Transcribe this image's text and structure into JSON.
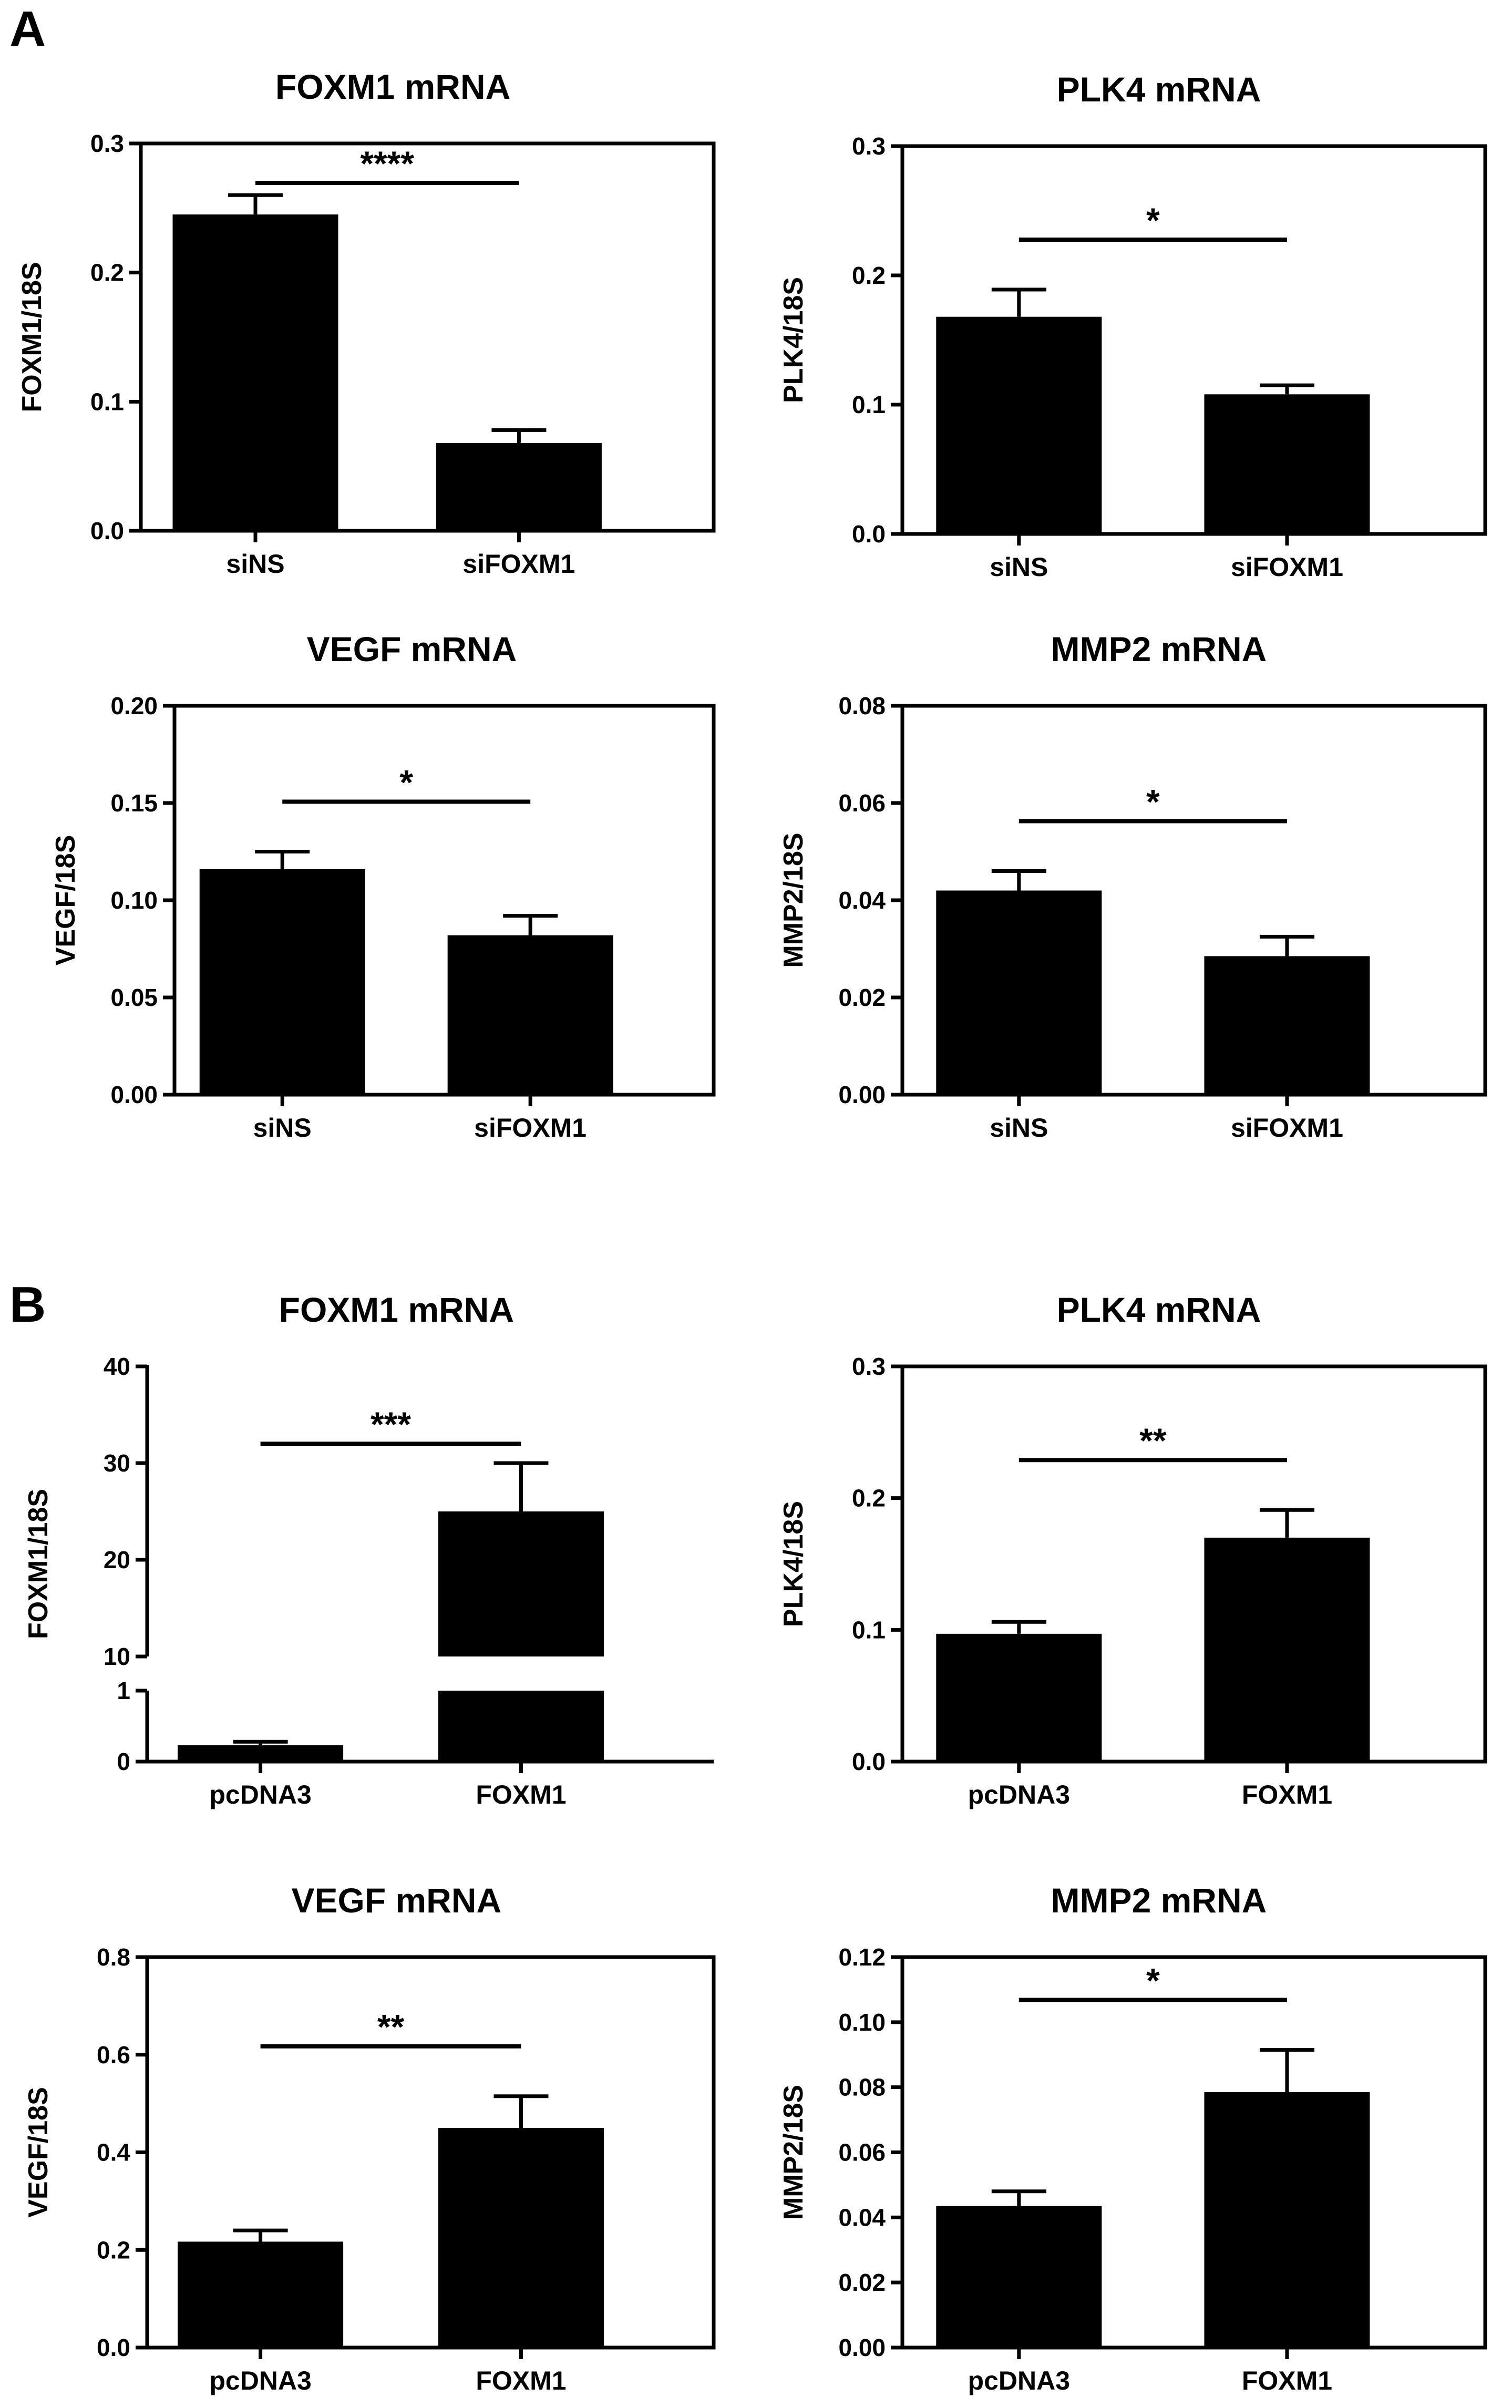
{
  "panels": [
    {
      "letter": "A"
    },
    {
      "letter": "B"
    }
  ],
  "chart_data": [
    {
      "panel": "A",
      "type": "bar",
      "title": "FOXM1 mRNA",
      "ylabel": "FOXM1/18S",
      "categories": [
        "siNS",
        "siFOXM1"
      ],
      "values": [
        0.245,
        0.068
      ],
      "errors": [
        0.015,
        0.01
      ],
      "ylim": [
        0,
        0.3
      ],
      "yticks": [
        "0.0",
        "0.1",
        "0.2",
        "0.3"
      ],
      "significance": "****"
    },
    {
      "panel": "A",
      "type": "bar",
      "title": "PLK4 mRNA",
      "ylabel": "PLK4/18S",
      "categories": [
        "siNS",
        "siFOXM1"
      ],
      "values": [
        0.168,
        0.108
      ],
      "errors": [
        0.021,
        0.007
      ],
      "ylim": [
        0,
        0.3
      ],
      "yticks": [
        "0.0",
        "0.1",
        "0.2",
        "0.3"
      ],
      "significance": "*"
    },
    {
      "panel": "A",
      "type": "bar",
      "title": "VEGF mRNA",
      "ylabel": "VEGF/18S",
      "categories": [
        "siNS",
        "siFOXM1"
      ],
      "values": [
        0.116,
        0.082
      ],
      "errors": [
        0.009,
        0.01
      ],
      "ylim": [
        0,
        0.2
      ],
      "yticks": [
        "0.00",
        "0.05",
        "0.10",
        "0.15",
        "0.20"
      ],
      "significance": "*"
    },
    {
      "panel": "A",
      "type": "bar",
      "title": "MMP2 mRNA",
      "ylabel": "MMP2/18S",
      "categories": [
        "siNS",
        "siFOXM1"
      ],
      "values": [
        0.042,
        0.0285
      ],
      "errors": [
        0.004,
        0.004
      ],
      "ylim": [
        0,
        0.08
      ],
      "yticks": [
        "0.00",
        "0.02",
        "0.04",
        "0.06",
        "0.08"
      ],
      "significance": "*"
    },
    {
      "panel": "B",
      "type": "bar",
      "title": "FOXM1 mRNA",
      "ylabel": "FOXM1/18S",
      "categories": [
        "pcDNA3",
        "FOXM1"
      ],
      "values": [
        0.23,
        25
      ],
      "errors": [
        0.05,
        5
      ],
      "broken_axis": {
        "lower": [
          0,
          1
        ],
        "upper": [
          10,
          40
        ]
      },
      "yticks_lower": [
        "0",
        "1"
      ],
      "yticks_upper": [
        "10",
        "20",
        "30",
        "40"
      ],
      "significance": "***"
    },
    {
      "panel": "B",
      "type": "bar",
      "title": "PLK4 mRNA",
      "ylabel": "PLK4/18S",
      "categories": [
        "pcDNA3",
        "FOXM1"
      ],
      "values": [
        0.097,
        0.17
      ],
      "errors": [
        0.009,
        0.021
      ],
      "ylim": [
        0,
        0.3
      ],
      "yticks": [
        "0.0",
        "0.1",
        "0.2",
        "0.3"
      ],
      "significance": "**"
    },
    {
      "panel": "B",
      "type": "bar",
      "title": "VEGF mRNA",
      "ylabel": "VEGF/18S",
      "categories": [
        "pcDNA3",
        "FOXM1"
      ],
      "values": [
        0.217,
        0.45
      ],
      "errors": [
        0.023,
        0.065
      ],
      "ylim": [
        0,
        0.8
      ],
      "yticks": [
        "0.0",
        "0.2",
        "0.4",
        "0.6",
        "0.8"
      ],
      "significance": "**"
    },
    {
      "panel": "B",
      "type": "bar",
      "title": "MMP2 mRNA",
      "ylabel": "MMP2/18S",
      "categories": [
        "pcDNA3",
        "FOXM1"
      ],
      "values": [
        0.0435,
        0.0785
      ],
      "errors": [
        0.0045,
        0.013
      ],
      "ylim": [
        0,
        0.12
      ],
      "yticks": [
        "0.00",
        "0.02",
        "0.04",
        "0.06",
        "0.08",
        "0.10",
        "0.12"
      ],
      "significance": "*"
    }
  ]
}
